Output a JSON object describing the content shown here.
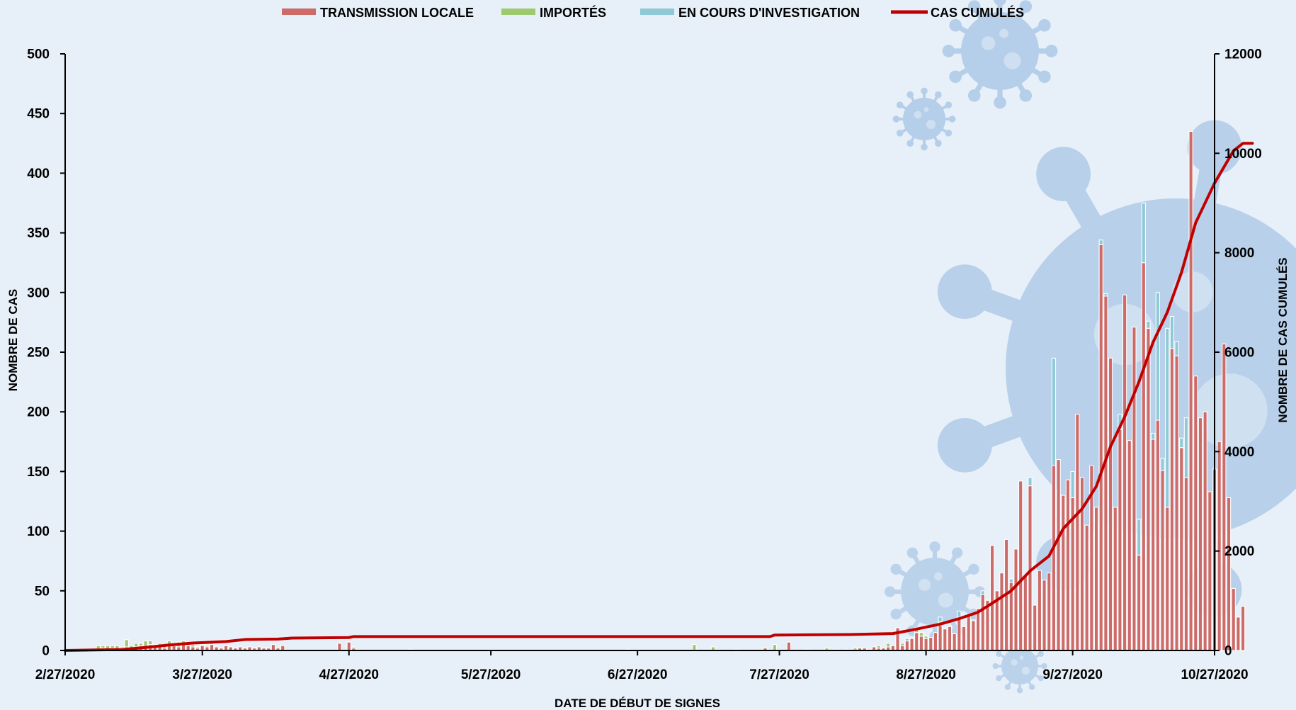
{
  "chart_data": {
    "type": "bar",
    "stacked": true,
    "xlabel": "DATE DE DÉBUT DE SIGNES",
    "ylabel": "NOMBRE DE CAS",
    "y2label": "NOMBRE DE CAS CUMULÉS",
    "ylim": [
      0,
      500
    ],
    "y2lim": [
      0,
      12000
    ],
    "yticks": [
      "0",
      "50",
      "100",
      "150",
      "200",
      "250",
      "300",
      "350",
      "400",
      "450",
      "500"
    ],
    "y2ticks": [
      "0",
      "2000",
      "4000",
      "6000",
      "8000",
      "10000",
      "12000"
    ],
    "xticks": [
      "2/27/2020",
      "3/27/2020",
      "4/27/2020",
      "5/27/2020",
      "6/27/2020",
      "7/27/2020",
      "8/27/2020",
      "9/27/2020",
      "10/27/2020"
    ],
    "x_start": "2020-02-27",
    "x_end": "2020-10-27",
    "legend_position": "top",
    "grid": false,
    "legend": [
      {
        "label": "TRANSMISSION LOCALE",
        "color": "#cd6b69",
        "kind": "bar"
      },
      {
        "label": "IMPORTÉS",
        "color": "#9fc96e",
        "kind": "bar"
      },
      {
        "label": "EN COURS D'INVESTIGATION",
        "color": "#8fc9d8",
        "kind": "bar"
      },
      {
        "label": "CAS CUMULÉS",
        "color": "#c00000",
        "kind": "line"
      }
    ],
    "series": [
      {
        "name": "TRANSMISSION LOCALE",
        "color": "#cd6b69",
        "values": [
          [
            "2020-03-05",
            1
          ],
          [
            "2020-03-06",
            2
          ],
          [
            "2020-03-07",
            1
          ],
          [
            "2020-03-08",
            2
          ],
          [
            "2020-03-09",
            1
          ],
          [
            "2020-03-10",
            2
          ],
          [
            "2020-03-11",
            3
          ],
          [
            "2020-03-12",
            2
          ],
          [
            "2020-03-13",
            3
          ],
          [
            "2020-03-14",
            4
          ],
          [
            "2020-03-15",
            3
          ],
          [
            "2020-03-16",
            5
          ],
          [
            "2020-03-17",
            3
          ],
          [
            "2020-03-18",
            4
          ],
          [
            "2020-03-19",
            2
          ],
          [
            "2020-03-20",
            5
          ],
          [
            "2020-03-21",
            4
          ],
          [
            "2020-03-22",
            3
          ],
          [
            "2020-03-23",
            5
          ],
          [
            "2020-03-24",
            4
          ],
          [
            "2020-03-25",
            3
          ],
          [
            "2020-03-26",
            2
          ],
          [
            "2020-03-27",
            4
          ],
          [
            "2020-03-28",
            3
          ],
          [
            "2020-03-29",
            5
          ],
          [
            "2020-03-30",
            3
          ],
          [
            "2020-03-31",
            2
          ],
          [
            "2020-04-01",
            4
          ],
          [
            "2020-04-02",
            3
          ],
          [
            "2020-04-03",
            2
          ],
          [
            "2020-04-04",
            3
          ],
          [
            "2020-04-05",
            2
          ],
          [
            "2020-04-06",
            3
          ],
          [
            "2020-04-07",
            2
          ],
          [
            "2020-04-08",
            3
          ],
          [
            "2020-04-09",
            2
          ],
          [
            "2020-04-10",
            2
          ],
          [
            "2020-04-11",
            5
          ],
          [
            "2020-04-12",
            2
          ],
          [
            "2020-04-13",
            4
          ],
          [
            "2020-04-25",
            6
          ],
          [
            "2020-04-27",
            7
          ],
          [
            "2020-04-28",
            2
          ],
          [
            "2020-07-18",
            1
          ],
          [
            "2020-07-24",
            2
          ],
          [
            "2020-07-29",
            7
          ],
          [
            "2020-08-02",
            1
          ],
          [
            "2020-08-08",
            1
          ],
          [
            "2020-08-10",
            1
          ],
          [
            "2020-08-13",
            2
          ],
          [
            "2020-08-14",
            2
          ],
          [
            "2020-08-15",
            1
          ],
          [
            "2020-08-16",
            3
          ],
          [
            "2020-08-17",
            2
          ],
          [
            "2020-08-18",
            2
          ],
          [
            "2020-08-19",
            3
          ],
          [
            "2020-08-20",
            4
          ],
          [
            "2020-08-21",
            19
          ],
          [
            "2020-08-22",
            4
          ],
          [
            "2020-08-23",
            8
          ],
          [
            "2020-08-24",
            10
          ],
          [
            "2020-08-25",
            15
          ],
          [
            "2020-08-26",
            12
          ],
          [
            "2020-08-27",
            10
          ],
          [
            "2020-08-28",
            11
          ],
          [
            "2020-08-29",
            15
          ],
          [
            "2020-08-30",
            21
          ],
          [
            "2020-08-31",
            18
          ],
          [
            "2020-09-01",
            20
          ],
          [
            "2020-09-02",
            14
          ],
          [
            "2020-09-03",
            28
          ],
          [
            "2020-09-04",
            20
          ],
          [
            "2020-09-05",
            30
          ],
          [
            "2020-09-06",
            25
          ],
          [
            "2020-09-07",
            35
          ],
          [
            "2020-09-08",
            47
          ],
          [
            "2020-09-09",
            42
          ],
          [
            "2020-09-10",
            88
          ],
          [
            "2020-09-11",
            50
          ],
          [
            "2020-09-12",
            65
          ],
          [
            "2020-09-13",
            93
          ],
          [
            "2020-09-14",
            57
          ],
          [
            "2020-09-15",
            85
          ],
          [
            "2020-09-16",
            142
          ],
          [
            "2020-09-17",
            63
          ],
          [
            "2020-09-18",
            138
          ],
          [
            "2020-09-19",
            38
          ],
          [
            "2020-09-20",
            67
          ],
          [
            "2020-09-21",
            59
          ],
          [
            "2020-09-22",
            65
          ],
          [
            "2020-09-23",
            155
          ],
          [
            "2020-09-24",
            160
          ],
          [
            "2020-09-25",
            130
          ],
          [
            "2020-09-26",
            143
          ],
          [
            "2020-09-27",
            128
          ],
          [
            "2020-09-28",
            198
          ],
          [
            "2020-09-29",
            145
          ],
          [
            "2020-09-30",
            105
          ],
          [
            "2020-10-01",
            155
          ],
          [
            "2020-10-02",
            120
          ],
          [
            "2020-10-03",
            340
          ],
          [
            "2020-10-04",
            297
          ],
          [
            "2020-10-05",
            245
          ],
          [
            "2020-10-06",
            120
          ],
          [
            "2020-10-07",
            185
          ],
          [
            "2020-10-08",
            298
          ],
          [
            "2020-10-09",
            176
          ],
          [
            "2020-10-10",
            271
          ],
          [
            "2020-10-11",
            80
          ],
          [
            "2020-10-12",
            325
          ],
          [
            "2020-10-13",
            270
          ],
          [
            "2020-10-14",
            177
          ],
          [
            "2020-10-15",
            193
          ],
          [
            "2020-10-16",
            151
          ],
          [
            "2020-10-17",
            120
          ],
          [
            "2020-10-18",
            253
          ],
          [
            "2020-10-19",
            247
          ],
          [
            "2020-10-20",
            170
          ],
          [
            "2020-10-21",
            145
          ],
          [
            "2020-10-22",
            435
          ],
          [
            "2020-10-23",
            230
          ],
          [
            "2020-10-24",
            195
          ],
          [
            "2020-10-25",
            200
          ],
          [
            "2020-10-26",
            133
          ],
          [
            "2020-10-27",
            152
          ],
          [
            "2020-10-28",
            175
          ],
          [
            "2020-10-29",
            257
          ],
          [
            "2020-10-30",
            128
          ],
          [
            "2020-10-31",
            52
          ],
          [
            "2020-11-01",
            28
          ],
          [
            "2020-11-02",
            37
          ]
        ]
      },
      {
        "name": "IMPORTÉS",
        "color": "#9fc96e",
        "values": [
          [
            "2020-03-05",
            3
          ],
          [
            "2020-03-06",
            2
          ],
          [
            "2020-03-07",
            3
          ],
          [
            "2020-03-08",
            2
          ],
          [
            "2020-03-09",
            3
          ],
          [
            "2020-03-10",
            1
          ],
          [
            "2020-03-11",
            6
          ],
          [
            "2020-03-12",
            2
          ],
          [
            "2020-03-13",
            3
          ],
          [
            "2020-03-14",
            2
          ],
          [
            "2020-03-15",
            5
          ],
          [
            "2020-03-16",
            3
          ],
          [
            "2020-03-17",
            2
          ],
          [
            "2020-03-18",
            2
          ],
          [
            "2020-03-19",
            3
          ],
          [
            "2020-03-20",
            3
          ],
          [
            "2020-03-21",
            2
          ],
          [
            "2020-03-22",
            4
          ],
          [
            "2020-03-23",
            3
          ],
          [
            "2020-03-24",
            2
          ],
          [
            "2020-03-25",
            2
          ],
          [
            "2020-03-26",
            1
          ],
          [
            "2020-03-27",
            1
          ],
          [
            "2020-03-28",
            1
          ],
          [
            "2020-03-29",
            1
          ],
          [
            "2020-04-28",
            1
          ],
          [
            "2020-05-10",
            1
          ],
          [
            "2020-06-25",
            1
          ],
          [
            "2020-07-09",
            5
          ],
          [
            "2020-07-13",
            3
          ],
          [
            "2020-07-26",
            5
          ],
          [
            "2020-08-06",
            2
          ],
          [
            "2020-08-12",
            2
          ],
          [
            "2020-08-17",
            2
          ],
          [
            "2020-08-19",
            3
          ],
          [
            "2020-08-22",
            2
          ],
          [
            "2020-08-25",
            4
          ],
          [
            "2020-08-26",
            3
          ],
          [
            "2020-08-27",
            2
          ],
          [
            "2020-08-30",
            3
          ]
        ]
      },
      {
        "name": "EN COURS D'INVESTIGATION",
        "color": "#8fc9d8",
        "values": [
          [
            "2020-08-23",
            2
          ],
          [
            "2020-08-30",
            4
          ],
          [
            "2020-09-03",
            5
          ],
          [
            "2020-09-08",
            3
          ],
          [
            "2020-09-14",
            3
          ],
          [
            "2020-09-18",
            7
          ],
          [
            "2020-09-23",
            90
          ],
          [
            "2020-09-27",
            22
          ],
          [
            "2020-10-03",
            4
          ],
          [
            "2020-10-04",
            2
          ],
          [
            "2020-10-07",
            13
          ],
          [
            "2020-10-11",
            30
          ],
          [
            "2020-10-12",
            50
          ],
          [
            "2020-10-13",
            6
          ],
          [
            "2020-10-14",
            5
          ],
          [
            "2020-10-15",
            107
          ],
          [
            "2020-10-16",
            10
          ],
          [
            "2020-10-17",
            150
          ],
          [
            "2020-10-18",
            27
          ],
          [
            "2020-10-19",
            12
          ],
          [
            "2020-10-20",
            8
          ],
          [
            "2020-10-21",
            50
          ]
        ]
      },
      {
        "name": "CAS CUMULÉS",
        "type": "line",
        "axis": "right",
        "color": "#c00000",
        "values": [
          [
            "2020-02-27",
            0
          ],
          [
            "2020-03-10",
            20
          ],
          [
            "2020-03-15",
            60
          ],
          [
            "2020-03-20",
            110
          ],
          [
            "2020-03-25",
            150
          ],
          [
            "2020-04-01",
            180
          ],
          [
            "2020-04-05",
            220
          ],
          [
            "2020-04-12",
            230
          ],
          [
            "2020-04-15",
            250
          ],
          [
            "2020-04-27",
            260
          ],
          [
            "2020-04-28",
            280
          ],
          [
            "2020-07-25",
            280
          ],
          [
            "2020-07-26",
            310
          ],
          [
            "2020-08-11",
            320
          ],
          [
            "2020-08-20",
            340
          ],
          [
            "2020-08-25",
            430
          ],
          [
            "2020-08-30",
            530
          ],
          [
            "2020-09-03",
            640
          ],
          [
            "2020-09-07",
            770
          ],
          [
            "2020-09-10",
            950
          ],
          [
            "2020-09-14",
            1200
          ],
          [
            "2020-09-18",
            1600
          ],
          [
            "2020-09-22",
            1900
          ],
          [
            "2020-09-25",
            2450
          ],
          [
            "2020-09-29",
            2850
          ],
          [
            "2020-10-02",
            3300
          ],
          [
            "2020-10-05",
            4100
          ],
          [
            "2020-10-08",
            4700
          ],
          [
            "2020-10-11",
            5400
          ],
          [
            "2020-10-14",
            6200
          ],
          [
            "2020-10-17",
            6800
          ],
          [
            "2020-10-20",
            7600
          ],
          [
            "2020-10-23",
            8600
          ],
          [
            "2020-10-27",
            9400
          ],
          [
            "2020-10-31",
            10050
          ],
          [
            "2020-11-02",
            10200
          ],
          [
            "2020-11-04",
            10200
          ]
        ]
      }
    ]
  }
}
